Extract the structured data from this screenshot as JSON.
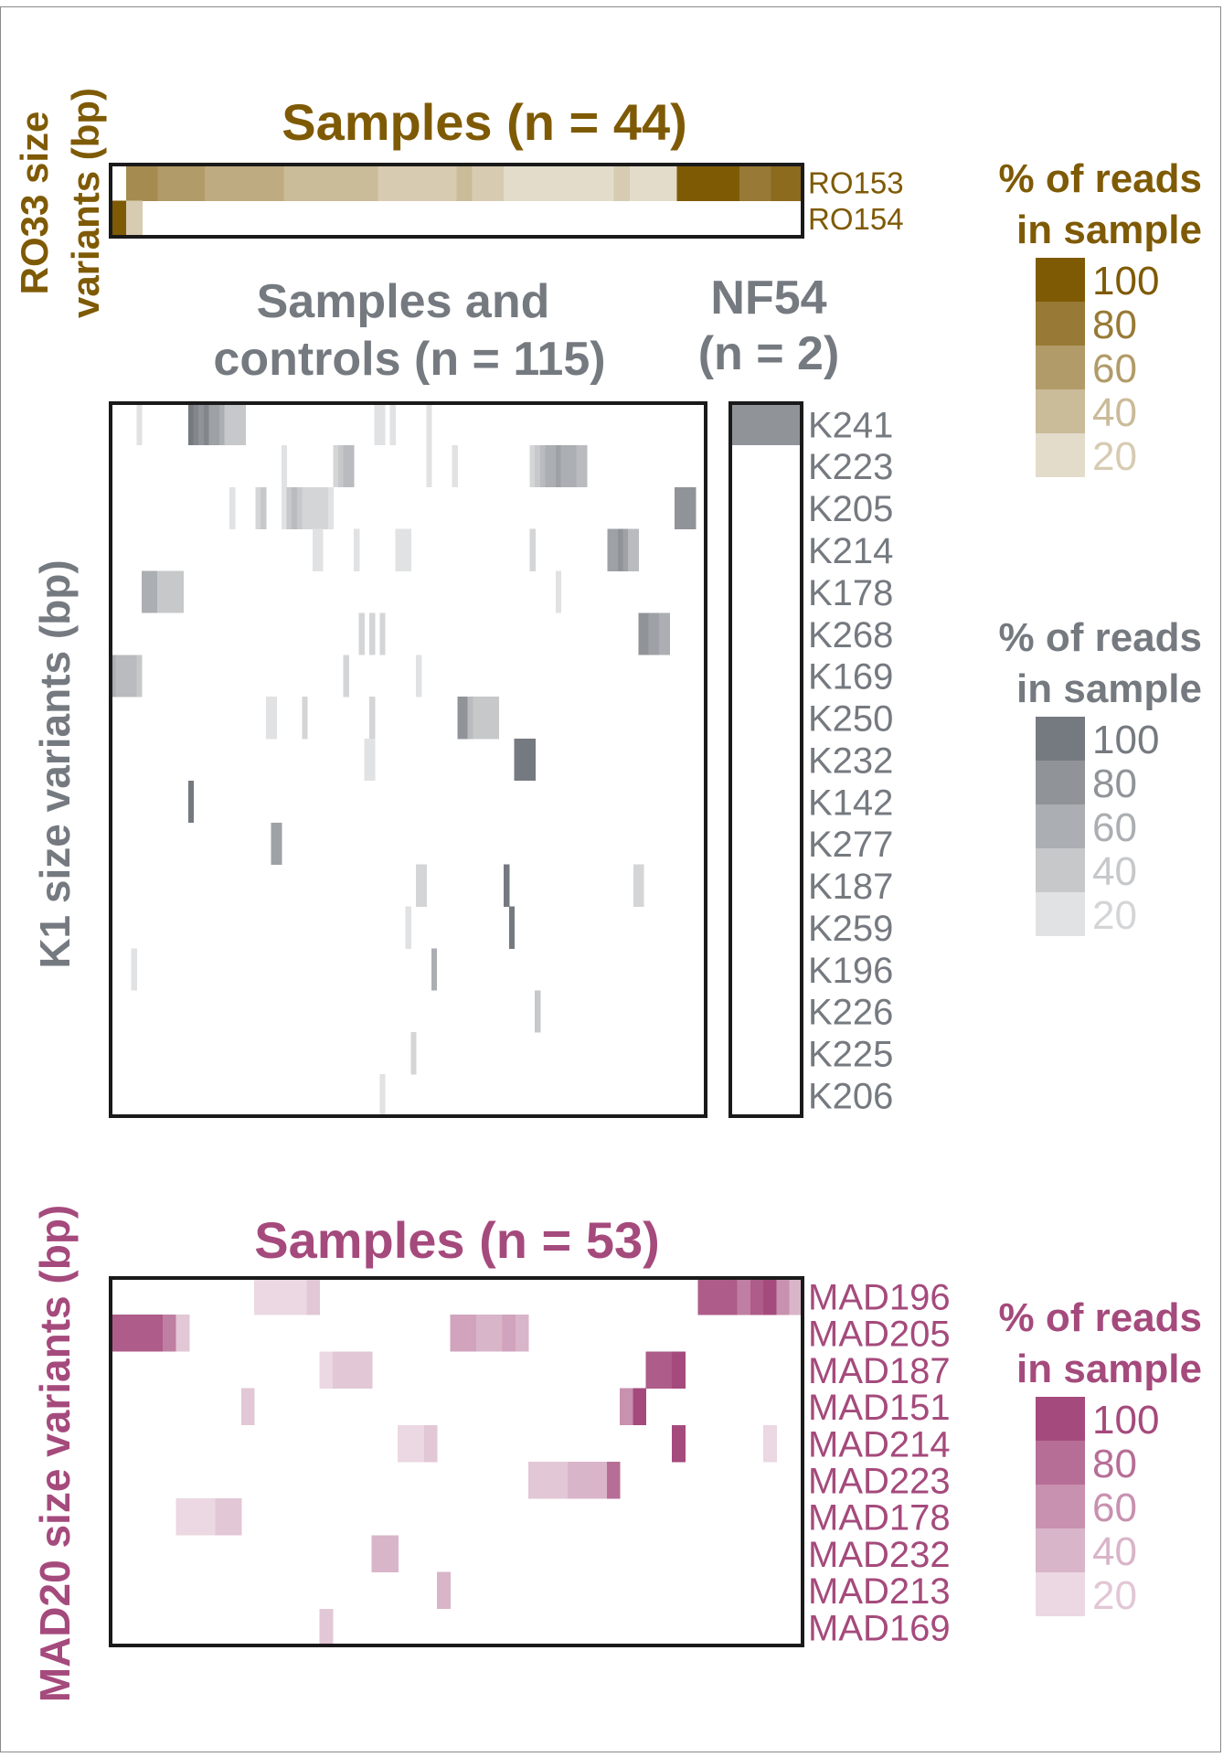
{
  "colors": {
    "ro33": "#7f5a05",
    "k1": "#757a80",
    "mad20": "#a54a7c",
    "frame": "#1a1a1a"
  },
  "ro33": {
    "title": "Samples (n = 44)",
    "axis_label_line1": "RO33 size",
    "axis_label_line2": "variants (bp)",
    "rows": [
      "RO153",
      "RO154"
    ],
    "legend_title_line1": "% of reads",
    "legend_title_line2": "in sample",
    "legend_levels": [
      "100",
      "80",
      "60",
      "40",
      "20"
    ]
  },
  "k1": {
    "title_line1": "Samples and",
    "title_line2": "controls (n = 115)",
    "nf54_title_line1": "NF54",
    "nf54_title_line2": "(n = 2)",
    "axis_label": "K1 size variants (bp)",
    "rows": [
      "K241",
      "K223",
      "K205",
      "K214",
      "K178",
      "K268",
      "K169",
      "K250",
      "K232",
      "K142",
      "K277",
      "K187",
      "K259",
      "K196",
      "K226",
      "K225",
      "K206"
    ],
    "legend_title_line1": "% of reads",
    "legend_title_line2": "in sample",
    "legend_levels": [
      "100",
      "80",
      "60",
      "40",
      "20"
    ]
  },
  "mad20": {
    "title": "Samples (n = 53)",
    "axis_label": "MAD20 size variants (bp)",
    "rows": [
      "MAD196",
      "MAD205",
      "MAD187",
      "MAD151",
      "MAD214",
      "MAD223",
      "MAD178",
      "MAD232",
      "MAD213",
      "MAD169"
    ],
    "legend_title_line1": "% of reads",
    "legend_title_line2": "in sample",
    "legend_levels": [
      "100",
      "80",
      "60",
      "40",
      "20"
    ]
  },
  "chart_data": [
    {
      "type": "heatmap",
      "title": "Samples (n = 44)",
      "ylabel": "RO33 size variants (bp)",
      "rows": [
        "RO153",
        "RO154"
      ],
      "n_columns": 44,
      "color_scale_label": "% of reads in sample",
      "color_scale_range": [
        0,
        100
      ],
      "color_scale_ticks": [
        20,
        40,
        60,
        80,
        100
      ],
      "values": [
        [
          0,
          70,
          70,
          60,
          60,
          60,
          50,
          50,
          50,
          50,
          50,
          40,
          40,
          40,
          40,
          40,
          40,
          30,
          30,
          30,
          30,
          30,
          40,
          30,
          30,
          20,
          20,
          20,
          20,
          20,
          20,
          20,
          30,
          20,
          20,
          20,
          100,
          100,
          100,
          100,
          80,
          80,
          90,
          90
        ],
        [
          100,
          30,
          0,
          0,
          0,
          0,
          0,
          0,
          0,
          0,
          0,
          0,
          0,
          0,
          0,
          0,
          0,
          0,
          0,
          0,
          0,
          0,
          0,
          0,
          0,
          0,
          0,
          0,
          0,
          0,
          0,
          0,
          0,
          0,
          0,
          0,
          0,
          0,
          0,
          0,
          0,
          0,
          0,
          0
        ]
      ]
    },
    {
      "type": "heatmap",
      "title": "Samples and controls (n = 115)",
      "ylabel": "K1 size variants (bp)",
      "rows": [
        "K241",
        "K223",
        "K205",
        "K214",
        "K178",
        "K268",
        "K169",
        "K250",
        "K232",
        "K142",
        "K277",
        "K187",
        "K259",
        "K196",
        "K226",
        "K225",
        "K206"
      ],
      "n_columns": 115,
      "color_scale_label": "% of reads in sample",
      "color_scale_range": [
        0,
        100
      ],
      "color_scale_ticks": [
        20,
        40,
        60,
        80,
        100
      ],
      "cells": [
        [
          0,
          5,
          20
        ],
        [
          0,
          15,
          100
        ],
        [
          0,
          16,
          90
        ],
        [
          0,
          17,
          80
        ],
        [
          0,
          18,
          90
        ],
        [
          0,
          19,
          70
        ],
        [
          0,
          20,
          70
        ],
        [
          0,
          21,
          60
        ],
        [
          0,
          22,
          40
        ],
        [
          0,
          23,
          40
        ],
        [
          0,
          24,
          40
        ],
        [
          0,
          25,
          40
        ],
        [
          0,
          51,
          20
        ],
        [
          0,
          52,
          20
        ],
        [
          0,
          54,
          20
        ],
        [
          0,
          61,
          20
        ],
        [
          1,
          33,
          20
        ],
        [
          1,
          43,
          30
        ],
        [
          1,
          44,
          40
        ],
        [
          1,
          45,
          50
        ],
        [
          1,
          46,
          50
        ],
        [
          1,
          61,
          20
        ],
        [
          1,
          66,
          20
        ],
        [
          1,
          81,
          30
        ],
        [
          1,
          82,
          40
        ],
        [
          1,
          83,
          50
        ],
        [
          1,
          84,
          60
        ],
        [
          1,
          85,
          60
        ],
        [
          1,
          86,
          70
        ],
        [
          1,
          87,
          60
        ],
        [
          1,
          88,
          60
        ],
        [
          1,
          89,
          60
        ],
        [
          1,
          90,
          50
        ],
        [
          1,
          91,
          50
        ],
        [
          2,
          23,
          20
        ],
        [
          2,
          28,
          30
        ],
        [
          2,
          29,
          40
        ],
        [
          2,
          33,
          20
        ],
        [
          2,
          34,
          40
        ],
        [
          2,
          35,
          50
        ],
        [
          2,
          36,
          40
        ],
        [
          2,
          37,
          30
        ],
        [
          2,
          38,
          30
        ],
        [
          2,
          39,
          30
        ],
        [
          2,
          40,
          30
        ],
        [
          2,
          41,
          30
        ],
        [
          2,
          42,
          20
        ],
        [
          2,
          109,
          80
        ],
        [
          2,
          110,
          80
        ],
        [
          2,
          111,
          80
        ],
        [
          2,
          112,
          80
        ],
        [
          3,
          39,
          20
        ],
        [
          3,
          40,
          20
        ],
        [
          3,
          47,
          20
        ],
        [
          3,
          55,
          20
        ],
        [
          3,
          56,
          20
        ],
        [
          3,
          57,
          20
        ],
        [
          3,
          81,
          30
        ],
        [
          3,
          96,
          70
        ],
        [
          3,
          97,
          70
        ],
        [
          3,
          98,
          80
        ],
        [
          3,
          99,
          70
        ],
        [
          3,
          100,
          50
        ],
        [
          3,
          101,
          50
        ],
        [
          4,
          6,
          60
        ],
        [
          4,
          7,
          60
        ],
        [
          4,
          8,
          60
        ],
        [
          4,
          9,
          40
        ],
        [
          4,
          10,
          40
        ],
        [
          4,
          11,
          40
        ],
        [
          4,
          12,
          40
        ],
        [
          4,
          13,
          40
        ],
        [
          4,
          86,
          20
        ],
        [
          5,
          48,
          30
        ],
        [
          5,
          50,
          30
        ],
        [
          5,
          52,
          30
        ],
        [
          5,
          102,
          80
        ],
        [
          5,
          103,
          80
        ],
        [
          5,
          104,
          70
        ],
        [
          5,
          105,
          70
        ],
        [
          5,
          106,
          60
        ],
        [
          5,
          107,
          60
        ],
        [
          6,
          0,
          60
        ],
        [
          6,
          1,
          50
        ],
        [
          6,
          2,
          50
        ],
        [
          6,
          3,
          50
        ],
        [
          6,
          4,
          50
        ],
        [
          6,
          5,
          40
        ],
        [
          6,
          45,
          30
        ],
        [
          6,
          59,
          20
        ],
        [
          7,
          30,
          20
        ],
        [
          7,
          31,
          20
        ],
        [
          7,
          37,
          30
        ],
        [
          7,
          50,
          30
        ],
        [
          7,
          67,
          80
        ],
        [
          7,
          68,
          80
        ],
        [
          7,
          69,
          50
        ],
        [
          7,
          70,
          40
        ],
        [
          7,
          71,
          40
        ],
        [
          7,
          72,
          40
        ],
        [
          7,
          73,
          40
        ],
        [
          7,
          74,
          40
        ],
        [
          8,
          49,
          20
        ],
        [
          8,
          50,
          20
        ],
        [
          8,
          78,
          100
        ],
        [
          8,
          79,
          100
        ],
        [
          8,
          80,
          100
        ],
        [
          8,
          81,
          100
        ],
        [
          9,
          15,
          100
        ],
        [
          10,
          31,
          70
        ],
        [
          10,
          32,
          70
        ],
        [
          11,
          59,
          30
        ],
        [
          11,
          60,
          30
        ],
        [
          11,
          76,
          100
        ],
        [
          11,
          101,
          30
        ],
        [
          11,
          102,
          30
        ],
        [
          12,
          57,
          20
        ],
        [
          12,
          77,
          100
        ],
        [
          13,
          4,
          20
        ],
        [
          13,
          62,
          60
        ],
        [
          14,
          82,
          40
        ],
        [
          15,
          58,
          30
        ],
        [
          16,
          52,
          20
        ]
      ]
    },
    {
      "type": "heatmap",
      "title": "NF54 (n = 2)",
      "rows": [
        "K241",
        "K223",
        "K205",
        "K214",
        "K178",
        "K268",
        "K169",
        "K250",
        "K232",
        "K142",
        "K277",
        "K187",
        "K259",
        "K196",
        "K226",
        "K225",
        "K206"
      ],
      "n_columns": 2,
      "color_scale_label": "% of reads in sample",
      "cells": [
        [
          0,
          0,
          80
        ],
        [
          0,
          1,
          80
        ]
      ]
    },
    {
      "type": "heatmap",
      "title": "Samples (n = 53)",
      "ylabel": "MAD20 size variants (bp)",
      "rows": [
        "MAD196",
        "MAD205",
        "MAD187",
        "MAD151",
        "MAD214",
        "MAD223",
        "MAD178",
        "MAD232",
        "MAD213",
        "MAD169"
      ],
      "n_columns": 53,
      "color_scale_label": "% of reads in sample",
      "color_scale_range": [
        0,
        100
      ],
      "color_scale_ticks": [
        20,
        40,
        60,
        80,
        100
      ],
      "cells": [
        [
          0,
          11,
          20
        ],
        [
          0,
          12,
          20
        ],
        [
          0,
          13,
          20
        ],
        [
          0,
          14,
          20
        ],
        [
          0,
          15,
          30
        ],
        [
          0,
          45,
          90
        ],
        [
          0,
          46,
          90
        ],
        [
          0,
          47,
          90
        ],
        [
          0,
          48,
          70
        ],
        [
          0,
          49,
          90
        ],
        [
          0,
          50,
          100
        ],
        [
          0,
          51,
          60
        ],
        [
          0,
          52,
          40
        ],
        [
          1,
          0,
          90
        ],
        [
          1,
          1,
          90
        ],
        [
          1,
          2,
          90
        ],
        [
          1,
          3,
          90
        ],
        [
          1,
          4,
          70
        ],
        [
          1,
          5,
          30
        ],
        [
          1,
          26,
          50
        ],
        [
          1,
          27,
          50
        ],
        [
          1,
          28,
          40
        ],
        [
          1,
          29,
          40
        ],
        [
          1,
          30,
          50
        ],
        [
          1,
          31,
          40
        ],
        [
          2,
          16,
          20
        ],
        [
          2,
          17,
          30
        ],
        [
          2,
          18,
          30
        ],
        [
          2,
          19,
          30
        ],
        [
          2,
          41,
          90
        ],
        [
          2,
          42,
          90
        ],
        [
          2,
          43,
          100
        ],
        [
          3,
          10,
          30
        ],
        [
          3,
          39,
          60
        ],
        [
          3,
          40,
          100
        ],
        [
          4,
          22,
          20
        ],
        [
          4,
          23,
          20
        ],
        [
          4,
          24,
          30
        ],
        [
          4,
          43,
          100
        ],
        [
          4,
          50,
          20
        ],
        [
          5,
          32,
          30
        ],
        [
          5,
          33,
          30
        ],
        [
          5,
          34,
          30
        ],
        [
          5,
          35,
          40
        ],
        [
          5,
          36,
          40
        ],
        [
          5,
          37,
          40
        ],
        [
          5,
          38,
          80
        ],
        [
          6,
          5,
          20
        ],
        [
          6,
          6,
          20
        ],
        [
          6,
          7,
          20
        ],
        [
          6,
          8,
          30
        ],
        [
          6,
          9,
          30
        ],
        [
          7,
          20,
          40
        ],
        [
          7,
          21,
          40
        ],
        [
          8,
          25,
          40
        ],
        [
          9,
          16,
          30
        ]
      ]
    }
  ]
}
